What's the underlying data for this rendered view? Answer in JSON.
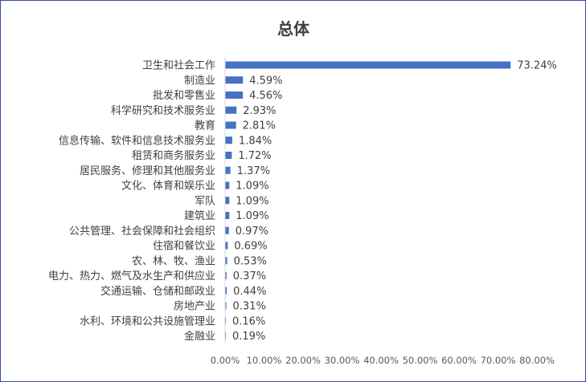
{
  "chart_data": {
    "type": "bar",
    "orientation": "horizontal",
    "title": "总体",
    "xlabel": "",
    "ylabel": "",
    "categories": [
      "卫生和社会工作",
      "制造业",
      "批发和零售业",
      "科学研究和技术服务业",
      "教育",
      "信息传输、软件和信息技术服务业",
      "租赁和商务服务业",
      "居民服务、修理和其他服务业",
      "文化、体育和娱乐业",
      "军队",
      "建筑业",
      "公共管理、社会保障和社会组织",
      "住宿和餐饮业",
      "农、林、牧、渔业",
      "电力、热力、燃气及水生产和供应业",
      "交通运输、仓储和邮政业",
      "房地产业",
      "水利、环境和公共设施管理业",
      "金融业"
    ],
    "values": [
      73.24,
      4.59,
      4.56,
      2.93,
      2.81,
      1.84,
      1.72,
      1.37,
      1.09,
      1.09,
      1.09,
      0.97,
      0.69,
      0.53,
      0.37,
      0.44,
      0.31,
      0.16,
      0.19
    ],
    "data_labels": [
      "73.24%",
      "4.59%",
      "4.56%",
      "2.93%",
      "2.81%",
      "1.84%",
      "1.72%",
      "1.37%",
      "1.09%",
      "1.09%",
      "1.09%",
      "0.97%",
      "0.69%",
      "0.53%",
      "0.37%",
      "0.44%",
      "0.31%",
      "0.16%",
      "0.19%"
    ],
    "xticks": [
      "0.00%",
      "10.00%",
      "20.00%",
      "30.00%",
      "40.00%",
      "50.00%",
      "60.00%",
      "70.00%",
      "80.00%"
    ],
    "xlim": [
      0,
      80
    ],
    "grid": false,
    "legend": "none",
    "bar_color": "#4472c4",
    "frame_color": "#3a45b5"
  }
}
